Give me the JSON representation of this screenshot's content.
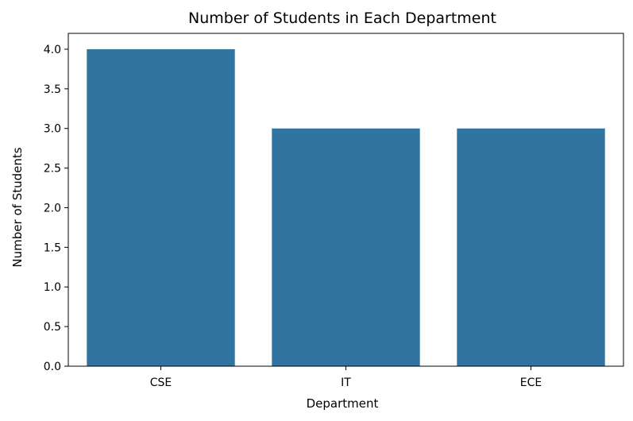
{
  "chart_data": {
    "type": "bar",
    "title": "Number of Students in Each Department",
    "xlabel": "Department",
    "ylabel": "Number of Students",
    "categories": [
      "CSE",
      "IT",
      "ECE"
    ],
    "values": [
      4,
      3,
      3
    ],
    "ylim": [
      0,
      4.2
    ],
    "yticks": [
      "0.0",
      "0.5",
      "1.0",
      "1.5",
      "2.0",
      "2.5",
      "3.0",
      "3.5",
      "4.0"
    ],
    "bar_color": "#3274a1",
    "grid": false,
    "legend": "none"
  }
}
